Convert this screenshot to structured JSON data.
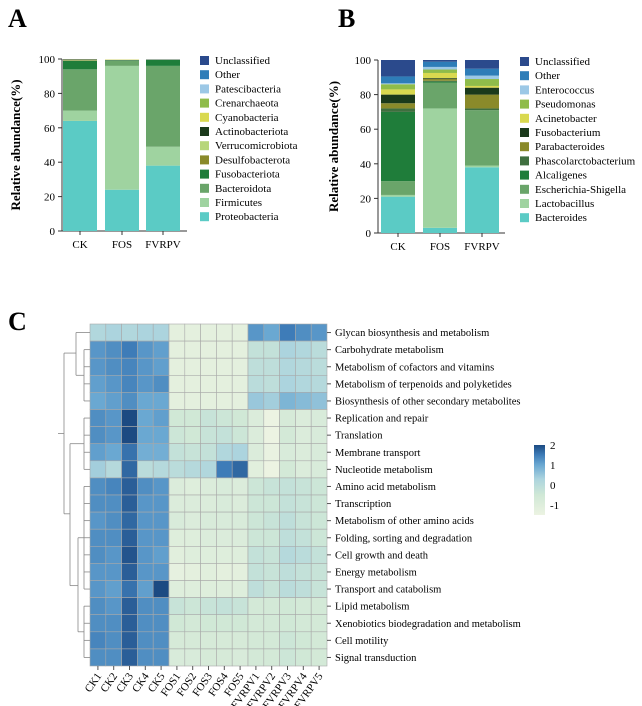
{
  "chart_data": [
    {
      "panel": "A",
      "type": "bar",
      "stacked": true,
      "ylabel": "Relative abundance(%)",
      "ylim": [
        0,
        100
      ],
      "yticks": [
        0,
        20,
        40,
        60,
        80,
        100
      ],
      "categories": [
        "CK",
        "FOS",
        "FVRPV"
      ],
      "series": [
        {
          "name": "Proteobacteria",
          "color": "#5bcbc5",
          "values": [
            64,
            24,
            38
          ]
        },
        {
          "name": "Firmicutes",
          "color": "#9fd3a0",
          "values": [
            6,
            72,
            11
          ]
        },
        {
          "name": "Bacteroidota",
          "color": "#6aa56a",
          "values": [
            24,
            3,
            47
          ]
        },
        {
          "name": "Fusobacteriota",
          "color": "#1f7d3a",
          "values": [
            5,
            0.3,
            3.5
          ]
        },
        {
          "name": "Desulfobacterota",
          "color": "#8a8a2a",
          "values": [
            0.3,
            0,
            0
          ]
        },
        {
          "name": "Verrucomicrobiota",
          "color": "#b7d67a",
          "values": [
            0.2,
            0,
            0
          ]
        },
        {
          "name": "Actinobacteriota",
          "color": "#1b3a1b",
          "values": [
            0.2,
            0.2,
            0.2
          ]
        },
        {
          "name": "Cyanobacteria",
          "color": "#d9d94f",
          "values": [
            0.2,
            0.2,
            0
          ]
        },
        {
          "name": "Crenarchaeota",
          "color": "#8fbc4a",
          "values": [
            0,
            0,
            0
          ]
        },
        {
          "name": "Patescibacteria",
          "color": "#9cc8e6",
          "values": [
            0,
            0,
            0
          ]
        },
        {
          "name": "Other",
          "color": "#2e7db8",
          "values": [
            0,
            0,
            0
          ]
        },
        {
          "name": "Unclassified",
          "color": "#2b4a8c",
          "values": [
            0.1,
            0,
            0
          ]
        }
      ]
    },
    {
      "panel": "B",
      "type": "bar",
      "stacked": true,
      "ylabel": "Relative abundance(%)",
      "ylim": [
        0,
        100
      ],
      "yticks": [
        0,
        20,
        40,
        60,
        80,
        100
      ],
      "categories": [
        "CK",
        "FOS",
        "FVRPV"
      ],
      "series": [
        {
          "name": "Bacteroides",
          "color": "#5bcbc5",
          "values": [
            21,
            3,
            38
          ]
        },
        {
          "name": "Lactobacillus",
          "color": "#9fd3a0",
          "values": [
            1,
            69,
            1
          ]
        },
        {
          "name": "Escherichia-Shigella",
          "color": "#6aa56a",
          "values": [
            8,
            15,
            32
          ]
        },
        {
          "name": "Alcaligenes",
          "color": "#1f7d3a",
          "values": [
            40,
            0.5,
            0
          ]
        },
        {
          "name": "Phascolarctobacterium",
          "color": "#3f6f3f",
          "values": [
            2,
            0.5,
            1
          ]
        },
        {
          "name": "Parabacteroides",
          "color": "#8a8a2a",
          "values": [
            3,
            1,
            8
          ]
        },
        {
          "name": "Fusobacterium",
          "color": "#1b3a1b",
          "values": [
            5,
            0.5,
            4
          ]
        },
        {
          "name": "Acinetobacter",
          "color": "#d9d94f",
          "values": [
            3,
            3,
            1
          ]
        },
        {
          "name": "Pseudomonas",
          "color": "#8fbc4a",
          "values": [
            3,
            2,
            4
          ]
        },
        {
          "name": "Enterococcus",
          "color": "#9cc8e6",
          "values": [
            0.5,
            1.5,
            2
          ]
        },
        {
          "name": "Other",
          "color": "#2e7db8",
          "values": [
            4,
            3,
            4
          ]
        },
        {
          "name": "Unclassified",
          "color": "#2b4a8c",
          "values": [
            9.5,
            1,
            5
          ]
        }
      ]
    },
    {
      "panel": "C",
      "type": "heatmap",
      "columns": [
        "CK1",
        "CK2",
        "CK3",
        "CK4",
        "CK5",
        "FOS1",
        "FOS2",
        "FOS3",
        "FOS4",
        "FOS5",
        "FVRPV1",
        "FVRPV2",
        "FVRPV3",
        "FVRPV4",
        "FVRPV5"
      ],
      "rows": [
        "Glycan biosynthesis and metabolism",
        "Carbohydrate metabolism",
        "Metabolism of cofactors and vitamins",
        "Metabolism of terpenoids and polyketides",
        "Biosynthesis of other secondary metabolites",
        "Replication and repair",
        "Translation",
        "Membrane transport",
        "Nucleotide metabolism",
        "Amino acid metabolism",
        "Transcription",
        "Metabolism of other amino acids",
        "Folding, sorting and degradation",
        "Cell growth and death",
        "Energy metabolism",
        "Transport and catabolism",
        "Lipid metabolism",
        "Xenobiotics biodegradation and metabolism",
        "Cell motility",
        "Signal transduction"
      ],
      "values": [
        [
          0.2,
          0.3,
          0.2,
          0.3,
          0.3,
          -1.2,
          -1.2,
          -1.2,
          -1.2,
          -1.2,
          1.2,
          1.0,
          1.5,
          1.3,
          1.2
        ],
        [
          1.2,
          1.3,
          1.5,
          1.2,
          1.1,
          -1.2,
          -1.2,
          -1.2,
          -1.2,
          -1.2,
          -0.2,
          -0.2,
          0.3,
          0.2,
          0.0
        ],
        [
          1.2,
          1.3,
          1.4,
          1.2,
          1.1,
          -1.2,
          -1.2,
          -1.2,
          -1.2,
          -1.2,
          -0.1,
          -0.1,
          0.2,
          0.1,
          0.0
        ],
        [
          1.1,
          1.2,
          1.4,
          1.2,
          1.3,
          -1.2,
          -1.2,
          -1.2,
          -1.2,
          -1.2,
          0.0,
          -0.1,
          0.3,
          0.2,
          0.1
        ],
        [
          1.0,
          1.1,
          1.3,
          1.0,
          1.0,
          -1.2,
          -1.2,
          -1.2,
          -1.2,
          -1.2,
          0.5,
          0.4,
          0.8,
          0.7,
          0.6
        ],
        [
          1.3,
          1.2,
          2.0,
          1.0,
          1.1,
          -0.5,
          -0.5,
          -0.3,
          -0.4,
          -0.5,
          -0.9,
          -1.5,
          -0.7,
          -0.9,
          -0.8
        ],
        [
          1.3,
          1.2,
          2.0,
          1.0,
          1.0,
          -0.4,
          -0.5,
          -0.3,
          -0.2,
          -0.4,
          -0.9,
          -1.6,
          -0.6,
          -0.9,
          -0.8
        ],
        [
          1.1,
          1.0,
          1.6,
          0.9,
          0.9,
          -0.2,
          -0.3,
          -0.2,
          0.2,
          0.3,
          -0.9,
          -1.4,
          -0.8,
          -0.9,
          -0.8
        ],
        [
          0.4,
          0.1,
          1.7,
          0.0,
          0.1,
          0.0,
          0.1,
          0.2,
          1.5,
          1.7,
          -1.1,
          -1.6,
          -0.6,
          -0.9,
          -0.8
        ],
        [
          1.3,
          1.4,
          1.8,
          1.3,
          1.2,
          -0.9,
          -1.0,
          -0.9,
          -0.8,
          -0.9,
          -0.4,
          -0.3,
          -0.2,
          -0.3,
          -0.4
        ],
        [
          1.3,
          1.3,
          1.8,
          1.2,
          1.2,
          -0.9,
          -0.9,
          -0.9,
          -0.8,
          -0.9,
          -0.4,
          -0.4,
          -0.2,
          -0.3,
          -0.4
        ],
        [
          1.2,
          1.3,
          1.7,
          1.2,
          1.2,
          -0.8,
          -0.9,
          -0.8,
          -0.8,
          -0.8,
          -0.4,
          -0.3,
          -0.1,
          -0.3,
          -0.4
        ],
        [
          1.3,
          1.3,
          1.8,
          1.2,
          1.2,
          -1.0,
          -1.0,
          -0.9,
          -0.9,
          -0.9,
          -0.4,
          -0.4,
          -0.1,
          -0.2,
          -0.4
        ],
        [
          1.3,
          1.2,
          1.9,
          1.2,
          1.1,
          -1.1,
          -1.0,
          -1.0,
          -1.0,
          -1.0,
          -0.2,
          -0.3,
          0.1,
          0.0,
          -0.2
        ],
        [
          1.2,
          1.2,
          1.8,
          1.2,
          1.2,
          -1.3,
          -1.2,
          -1.1,
          -1.2,
          -1.2,
          -0.2,
          -0.3,
          -0.1,
          -0.2,
          -0.3
        ],
        [
          1.2,
          1.1,
          1.6,
          1.1,
          2.0,
          -1.0,
          -1.0,
          -1.0,
          -1.0,
          -1.0,
          -0.1,
          -0.3,
          0.0,
          -0.1,
          -0.3
        ],
        [
          1.3,
          1.2,
          1.8,
          1.3,
          1.3,
          -0.3,
          -0.4,
          -0.3,
          -0.2,
          -0.3,
          -0.6,
          -0.6,
          -0.5,
          -0.6,
          -0.6
        ],
        [
          1.3,
          1.3,
          1.8,
          1.3,
          1.3,
          -0.5,
          -0.6,
          -0.5,
          -0.5,
          -0.5,
          -0.6,
          -0.6,
          -0.5,
          -0.6,
          -0.6
        ],
        [
          1.4,
          1.3,
          1.8,
          1.3,
          1.3,
          -0.7,
          -0.7,
          -0.7,
          -0.7,
          -0.7,
          -0.6,
          -0.6,
          -0.4,
          -0.5,
          -0.6
        ],
        [
          1.3,
          1.3,
          1.8,
          1.3,
          1.3,
          -0.8,
          -0.8,
          -0.7,
          -0.7,
          -0.8,
          -0.6,
          -0.6,
          -0.4,
          -0.5,
          -0.6
        ]
      ],
      "color_scale": {
        "min": -1.5,
        "max": 2,
        "ticks": [
          2,
          1,
          0,
          -1
        ]
      }
    }
  ]
}
